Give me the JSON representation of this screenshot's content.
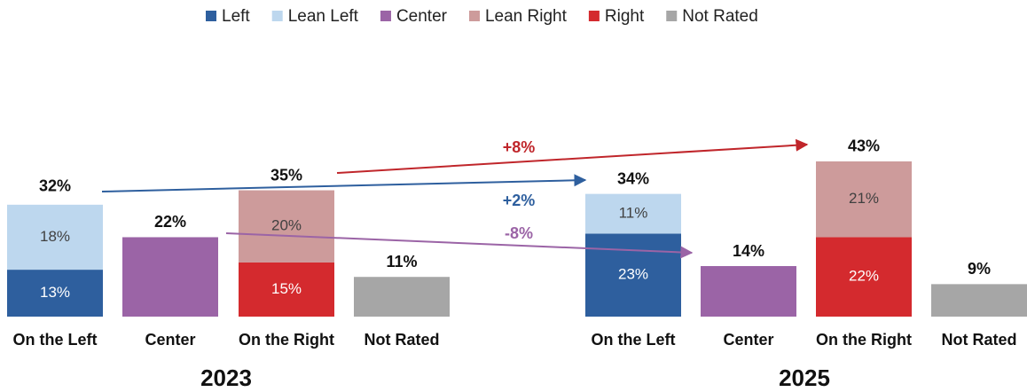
{
  "chart_data": {
    "type": "stacked_bar",
    "categories": [
      "On the Left",
      "Center",
      "On the Right",
      "Not Rated",
      "On the Left",
      "Center",
      "On the Right",
      "Not Rated"
    ],
    "groups": [
      "2023",
      "2025"
    ],
    "series": [
      {
        "name": "Left",
        "color": "#2e5f9e",
        "values": [
          13,
          null,
          null,
          null,
          23,
          null,
          null,
          null
        ],
        "value_labels": [
          "13%",
          null,
          null,
          null,
          "23%",
          null,
          null,
          null
        ]
      },
      {
        "name": "Lean Left",
        "color": "#bdd7ee",
        "values": [
          18,
          null,
          null,
          null,
          11,
          null,
          null,
          null
        ],
        "value_labels": [
          "18%",
          null,
          null,
          null,
          "11%",
          null,
          null,
          null
        ]
      },
      {
        "name": "Center",
        "color": "#9b64a6",
        "values": [
          null,
          22,
          null,
          null,
          null,
          14,
          null,
          null
        ]
      },
      {
        "name": "Lean Right",
        "color": "#cd9b9b",
        "values": [
          null,
          null,
          20,
          null,
          null,
          null,
          21,
          null
        ],
        "value_labels": [
          null,
          null,
          "20%",
          null,
          null,
          null,
          "21%",
          null
        ]
      },
      {
        "name": "Right",
        "color": "#d42a2e",
        "values": [
          null,
          null,
          15,
          null,
          null,
          null,
          22,
          null
        ],
        "value_labels": [
          null,
          null,
          "15%",
          null,
          null,
          null,
          "22%",
          null
        ]
      },
      {
        "name": "Not Rated",
        "color": "#a6a6a6",
        "values": [
          null,
          null,
          null,
          11,
          null,
          null,
          null,
          9
        ]
      }
    ],
    "totals": [
      32,
      22,
      35,
      11,
      34,
      14,
      43,
      9
    ],
    "total_labels": [
      "32%",
      "22%",
      "35%",
      "11%",
      "34%",
      "14%",
      "43%",
      "9%"
    ],
    "annotations": [
      {
        "text": "+8%",
        "color": "#c0262b"
      },
      {
        "text": "+2%",
        "color": "#2e5f9e"
      },
      {
        "text": "-8%",
        "color": "#9b64a6"
      }
    ]
  }
}
